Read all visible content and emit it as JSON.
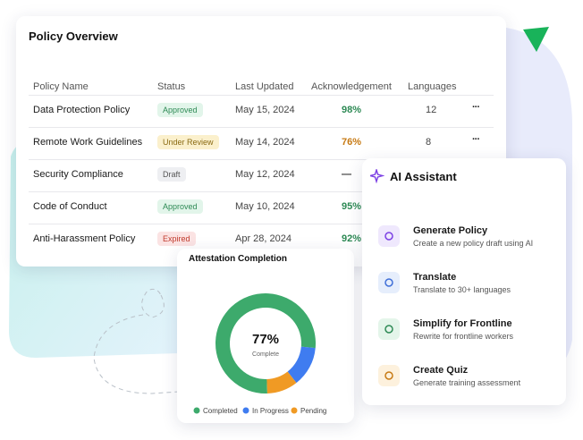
{
  "policy_overview": {
    "title": "Policy Overview",
    "columns": [
      "Policy Name",
      "Status",
      "Last Updated",
      "Acknowledgement",
      "Languages"
    ],
    "rows": [
      {
        "name": "Data Protection Policy",
        "status": "Approved",
        "status_color": "#2e8a55",
        "status_bg": "#e2f5ea",
        "updated": "May 15, 2024",
        "ack": "98%",
        "ack_color": "#2e8a55",
        "languages": "12"
      },
      {
        "name": "Remote Work Guidelines",
        "status": "Under Review",
        "status_color": "#8a6a12",
        "status_bg": "#fbf0cc",
        "updated": "May 14, 2024",
        "ack": "76%",
        "ack_color": "#c77a14",
        "languages": "8"
      },
      {
        "name": "Security Compliance",
        "status": "Draft",
        "status_color": "#555",
        "status_bg": "#eeeff2",
        "updated": "May 12, 2024",
        "ack": "—",
        "ack_color": "#333"
      },
      {
        "name": "Code of Conduct",
        "status": "Approved",
        "status_color": "#2e8a55",
        "status_bg": "#e2f5ea",
        "updated": "May 10, 2024",
        "ack": "95%",
        "ack_color": "#2e8a55"
      },
      {
        "name": "Anti-Harassment Policy",
        "status": "Expired",
        "status_color": "#c0392b",
        "status_bg": "#fbe3e3",
        "updated": "Apr 28, 2024",
        "ack": "92%",
        "ack_color": "#2e8a55"
      }
    ]
  },
  "ai_assistant": {
    "title": "AI Assistant",
    "items": [
      {
        "title": "Generate Policy",
        "subtitle": "Create a new policy draft using AI"
      },
      {
        "title": "Translate",
        "subtitle": "Translate to 30+ languages"
      },
      {
        "title": "Simplify for Frontline",
        "subtitle": "Rewrite for frontline workers"
      },
      {
        "title": "Create Quiz",
        "subtitle": "Generate training assessment"
      }
    ]
  },
  "chart_data": {
    "type": "donut",
    "title": "Attestation Completion",
    "center_sublabel": "Complete",
    "segments": [
      {
        "name": "Completed",
        "color": "#3daa6c",
        "value": 77,
        "value_label": "77%"
      },
      {
        "name": "In Progress",
        "color": "#3f7cf0",
        "value": 13
      },
      {
        "name": "Pending",
        "color": "#f09a24",
        "value": 10
      }
    ]
  }
}
